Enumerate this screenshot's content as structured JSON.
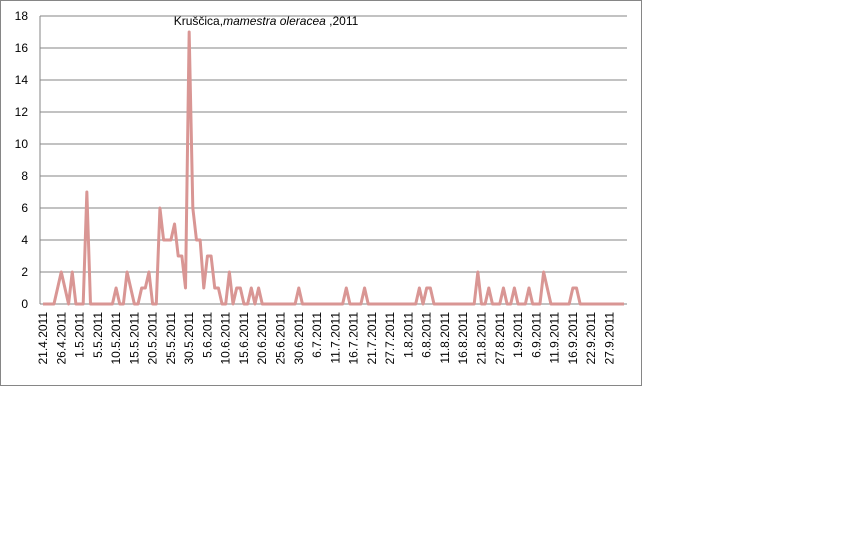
{
  "chart_data": {
    "type": "line",
    "title": {
      "prefix": "Kruščica,",
      "species": "mamestra oleracea",
      "suffix": " ,2011"
    },
    "categories": [
      "21.4.2011",
      null,
      null,
      null,
      null,
      "26.4.2011",
      null,
      null,
      null,
      null,
      "1.5.2011",
      null,
      null,
      null,
      null,
      "5.5.2011",
      null,
      null,
      null,
      null,
      "10.5.2011",
      null,
      null,
      null,
      null,
      "15.5.2011",
      null,
      null,
      null,
      null,
      "20.5.2011",
      null,
      null,
      null,
      null,
      "25.5.2011",
      null,
      null,
      null,
      null,
      "30.5.2011",
      null,
      null,
      null,
      null,
      "5.6.2011",
      null,
      null,
      null,
      null,
      "10.6.2011",
      null,
      null,
      null,
      null,
      "15.6.2011",
      null,
      null,
      null,
      null,
      "20.6.2011",
      null,
      null,
      null,
      null,
      "25.6.2011",
      null,
      null,
      null,
      null,
      "30.6.2011",
      null,
      null,
      null,
      null,
      "6.7.2011",
      null,
      null,
      null,
      null,
      "11.7.2011",
      null,
      null,
      null,
      null,
      "16.7.2011",
      null,
      null,
      null,
      null,
      "21.7.2011",
      null,
      null,
      null,
      null,
      "27.7.2011",
      null,
      null,
      null,
      null,
      "1.8.2011",
      null,
      null,
      null,
      null,
      "6.8.2011",
      null,
      null,
      null,
      null,
      "11.8.2011",
      null,
      null,
      null,
      null,
      "16.8.2011",
      null,
      null,
      null,
      null,
      "21.8.2011",
      null,
      null,
      null,
      null,
      "27.8.2011",
      null,
      null,
      null,
      null,
      "1.9.2011",
      null,
      null,
      null,
      null,
      "6.9.2011",
      null,
      null,
      null,
      null,
      "11.9.2011",
      null,
      null,
      null,
      null,
      "16.9.2011",
      null,
      null,
      null,
      null,
      "22.9.2011",
      null,
      null,
      null,
      null,
      "27.9.2011",
      null,
      null,
      null,
      null
    ],
    "values": [
      0,
      0,
      0,
      0,
      1,
      2,
      1,
      0,
      2,
      0,
      0,
      0,
      7,
      0,
      0,
      0,
      0,
      0,
      0,
      0,
      1,
      0,
      0,
      2,
      1,
      0,
      0,
      1,
      1,
      2,
      0,
      0,
      6,
      4,
      4,
      4,
      5,
      3,
      3,
      1,
      17,
      6,
      4,
      4,
      1,
      3,
      3,
      1,
      1,
      0,
      0,
      2,
      0,
      1,
      1,
      0,
      0,
      1,
      0,
      1,
      0,
      0,
      0,
      0,
      0,
      0,
      0,
      0,
      0,
      0,
      1,
      0,
      0,
      0,
      0,
      0,
      0,
      0,
      0,
      0,
      0,
      0,
      0,
      1,
      0,
      0,
      0,
      0,
      1,
      0,
      0,
      0,
      0,
      0,
      0,
      0,
      0,
      0,
      0,
      0,
      0,
      0,
      0,
      1,
      0,
      1,
      1,
      0,
      0,
      0,
      0,
      0,
      0,
      0,
      0,
      0,
      0,
      0,
      0,
      2,
      0,
      0,
      1,
      0,
      0,
      0,
      1,
      0,
      0,
      1,
      0,
      0,
      0,
      1,
      0,
      0,
      0,
      2,
      1,
      0,
      0,
      0,
      0,
      0,
      0,
      1,
      1,
      0,
      0,
      0,
      0,
      0,
      0,
      0,
      0,
      0,
      0,
      0,
      0,
      0
    ],
    "color": "#d99694",
    "ylim": [
      0,
      18
    ],
    "yticks": [
      0,
      2,
      4,
      6,
      8,
      10,
      12,
      14,
      16,
      18
    ],
    "grid": true
  }
}
